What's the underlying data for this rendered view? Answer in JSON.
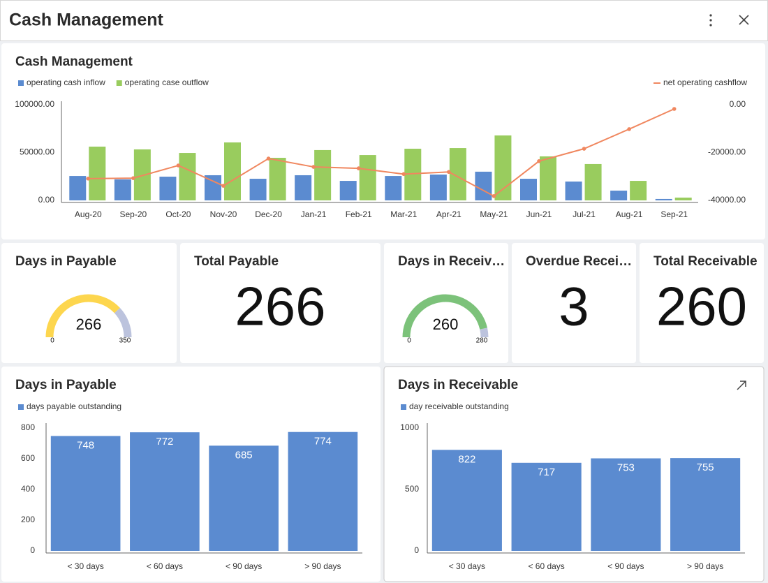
{
  "header": {
    "title": "Cash Management"
  },
  "chart_data": [
    {
      "type": "combo",
      "title": "Cash Management",
      "categories": [
        "Aug-20",
        "Sep-20",
        "Oct-20",
        "Nov-20",
        "Dec-20",
        "Jan-21",
        "Feb-21",
        "Mar-21",
        "Apr-21",
        "May-21",
        "Jun-21",
        "Jul-21",
        "Aug-21",
        "Sep-21"
      ],
      "series": [
        {
          "name": "operating cash inflow",
          "color": "#5b8bd0",
          "type": "bar",
          "values": [
            25500,
            22000,
            24800,
            26300,
            22600,
            26300,
            20400,
            25500,
            27000,
            30000,
            22600,
            19700,
            10200,
            1500
          ]
        },
        {
          "name": "operating case outflow",
          "color": "#99cc5e",
          "type": "bar",
          "values": [
            56200,
            53300,
            49600,
            60600,
            44500,
            52600,
            47400,
            54000,
            54700,
            67900,
            46000,
            38000,
            20400,
            2900
          ]
        },
        {
          "name": "net operating cashflow",
          "color": "#f0875f",
          "type": "line",
          "axis": "y2",
          "values": [
            -30900,
            -30700,
            -25400,
            -33900,
            -22500,
            -26000,
            -26600,
            -29000,
            -28100,
            -38200,
            -23600,
            -18400,
            -10200,
            -1750
          ]
        }
      ],
      "ylim": [
        0,
        100000
      ],
      "yticks": [
        {
          "value": 0,
          "label": "0.00"
        },
        {
          "value": 50000,
          "label": "50000.00"
        },
        {
          "value": 100000,
          "label": "100000.00"
        }
      ],
      "y2lim": [
        -40000,
        0
      ],
      "y2ticks": [
        {
          "value": -40000,
          "label": "-40000.00"
        },
        {
          "value": -20000,
          "label": "-20000.00"
        },
        {
          "value": 0,
          "label": "0.00"
        }
      ]
    },
    {
      "type": "gauge",
      "title": "Days in Payable",
      "value": 266,
      "min": 0,
      "max": 350,
      "color": "#fdd64e",
      "track": "#bcc3dd"
    },
    {
      "type": "kpi",
      "title": "Total Payable",
      "value": 266
    },
    {
      "type": "gauge",
      "title": "Days in Receiv…",
      "value": 260,
      "min": 0,
      "max": 280,
      "color": "#7cc27a",
      "track": "#bcc3dd"
    },
    {
      "type": "kpi",
      "title": "Overdue Recei…",
      "value": 3
    },
    {
      "type": "kpi",
      "title": "Total Receivable",
      "value": 260
    },
    {
      "type": "bar",
      "title": "Days in Payable",
      "categories": [
        "< 30 days",
        "< 60 days",
        "< 90 days",
        "> 90 days"
      ],
      "series": [
        {
          "name": "days payable outstanding",
          "color": "#5b8bd0",
          "values": [
            748,
            772,
            685,
            774
          ]
        }
      ],
      "ylim": [
        0,
        800
      ],
      "yticks": [
        0,
        200,
        400,
        600,
        800
      ]
    },
    {
      "type": "bar",
      "title": "Days in Receivable",
      "categories": [
        "< 30 days",
        "< 60 days",
        "< 90 days",
        "> 90 days"
      ],
      "series": [
        {
          "name": "day receivable outstanding",
          "color": "#5b8bd0",
          "values": [
            822,
            717,
            753,
            755
          ]
        }
      ],
      "ylim": [
        0,
        1000
      ],
      "yticks": [
        0,
        500,
        1000
      ]
    }
  ]
}
